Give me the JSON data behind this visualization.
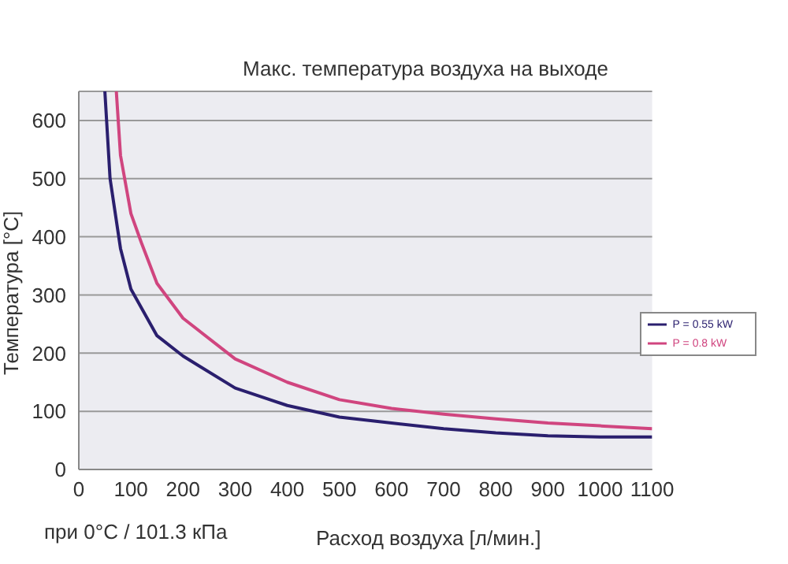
{
  "chart_data": {
    "type": "line",
    "title": "Макс. температура воздуха на выходе",
    "xlabel": "Расход воздуха [л/мин.]",
    "ylabel": "Температура [°C]",
    "annotations": [
      "при 0°C / 101.3 кПа"
    ],
    "x": [
      50,
      60,
      80,
      100,
      150,
      200,
      300,
      400,
      500,
      600,
      700,
      800,
      900,
      1000,
      1100
    ],
    "series": [
      {
        "name": "P = 0.55 kW",
        "color": "#2a1f6e",
        "values": [
          650,
          500,
          380,
          310,
          230,
          195,
          140,
          110,
          90,
          80,
          70,
          63,
          58,
          56,
          56
        ]
      },
      {
        "name": "P = 0.8 kW",
        "color": "#d0457f",
        "x": [
          72,
          80,
          100,
          120,
          150,
          200,
          300,
          400,
          500,
          600,
          700,
          800,
          900,
          1000,
          1100
        ],
        "values": [
          650,
          540,
          440,
          390,
          320,
          260,
          190,
          150,
          120,
          105,
          95,
          87,
          80,
          75,
          70
        ]
      }
    ],
    "xlim": [
      0,
      1100
    ],
    "xticks": [
      0,
      100,
      200,
      300,
      400,
      500,
      600,
      700,
      800,
      900,
      1000,
      1100
    ],
    "ylim": [
      0,
      650
    ],
    "yticks": [
      0,
      100,
      200,
      300,
      400,
      500,
      600
    ],
    "grid": "y",
    "legend": "right",
    "marker": "none",
    "line_style": "solid"
  }
}
